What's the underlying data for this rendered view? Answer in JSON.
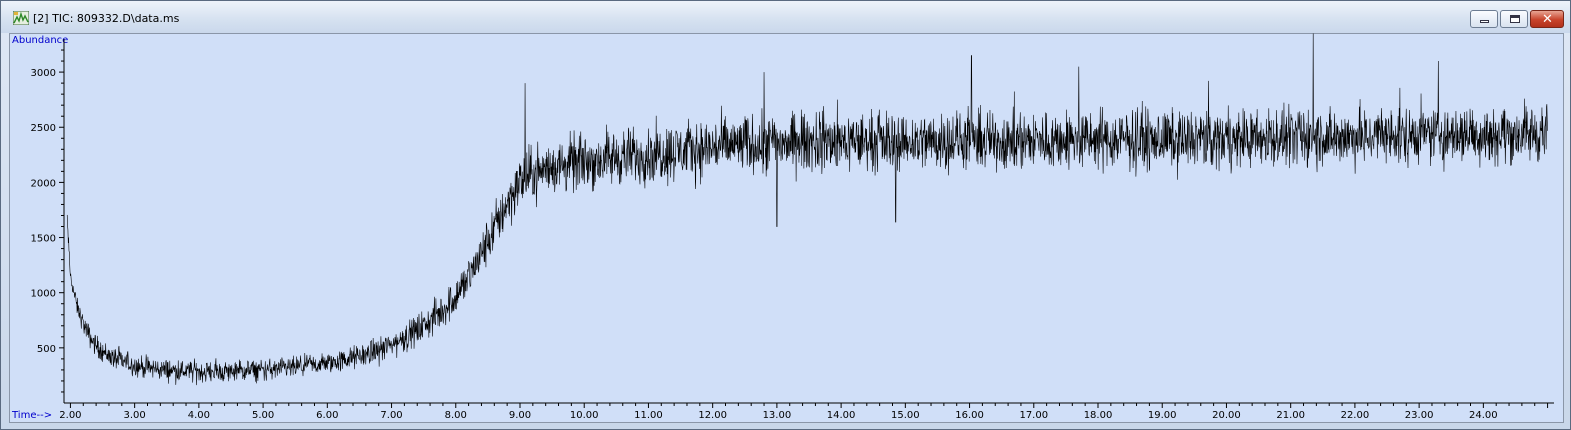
{
  "window": {
    "title": "[2] TIC: 809332.D\\data.ms",
    "icons": [
      "chromatogram-app-icon",
      "minimize-icon",
      "maximize-icon",
      "close-icon"
    ],
    "close_glyph": "✕"
  },
  "chart_data": {
    "type": "line",
    "title": "",
    "xlabel": "Time-->",
    "ylabel": "Abundance",
    "xlim": [
      1.9,
      25.1
    ],
    "ylim": [
      0,
      3300
    ],
    "x_ticks": [
      2,
      3,
      4,
      5,
      6,
      7,
      8,
      9,
      10,
      11,
      12,
      13,
      14,
      15,
      16,
      17,
      18,
      19,
      20,
      21,
      22,
      23,
      24
    ],
    "x_tick_labels": [
      "2.00",
      "3.00",
      "4.00",
      "5.00",
      "6.00",
      "7.00",
      "8.00",
      "9.00",
      "10.00",
      "11.00",
      "12.00",
      "13.00",
      "14.00",
      "15.00",
      "16.00",
      "17.00",
      "18.00",
      "19.00",
      "20.00",
      "21.00",
      "22.00",
      "23.00",
      "24.00"
    ],
    "y_ticks": [
      500,
      1000,
      1500,
      2000,
      2500,
      3000
    ],
    "y_tick_labels": [
      "500",
      "1000",
      "1500",
      "2000",
      "2500",
      "3000"
    ],
    "grid": false,
    "legend": "none",
    "line_color": "#000000",
    "background_color": "#d0dff8",
    "series": [
      {
        "x": [
          1.95,
          2.0,
          2.1,
          2.2,
          2.3,
          2.4,
          2.5,
          2.6,
          2.7,
          2.8,
          2.9,
          3.0,
          3.2,
          3.4,
          3.6,
          3.8,
          4.0,
          4.2,
          4.4,
          4.6,
          4.8,
          5.0,
          5.2,
          5.4,
          5.6,
          5.8,
          6.0,
          6.2,
          6.4,
          6.6,
          6.8,
          7.0,
          7.2,
          7.4,
          7.6,
          7.8,
          8.0,
          8.2,
          8.4,
          8.6,
          8.8,
          9.0,
          9.2,
          9.4,
          9.6,
          9.8,
          10.0,
          10.2,
          10.4,
          10.6,
          10.8,
          11.0,
          11.2,
          11.4,
          11.6,
          11.8,
          12.0,
          12.2,
          12.4,
          12.6,
          12.8,
          13.0,
          13.2,
          13.4,
          13.6,
          13.8,
          14.0,
          14.2,
          14.4,
          14.6,
          14.8,
          15.0,
          15.2,
          15.4,
          15.6,
          15.8,
          16.0,
          16.2,
          16.4,
          16.6,
          16.8,
          17.0,
          17.2,
          17.4,
          17.6,
          17.8,
          18.0,
          18.2,
          18.4,
          18.6,
          18.8,
          19.0,
          19.2,
          19.4,
          19.6,
          19.8,
          20.0,
          20.2,
          20.4,
          20.6,
          20.8,
          21.0,
          21.2,
          21.4,
          21.6,
          21.8,
          22.0,
          22.2,
          22.4,
          22.6,
          22.8,
          23.0,
          23.2,
          23.4,
          23.6,
          23.8,
          24.0,
          24.2,
          24.4,
          24.6,
          24.8,
          25.0
        ],
        "y": [
          1650,
          1150,
          880,
          720,
          600,
          520,
          470,
          430,
          400,
          380,
          360,
          340,
          320,
          305,
          295,
          290,
          285,
          285,
          285,
          290,
          295,
          300,
          305,
          315,
          330,
          345,
          360,
          380,
          410,
          440,
          480,
          530,
          590,
          660,
          740,
          840,
          970,
          1140,
          1350,
          1580,
          1820,
          2000,
          2080,
          2120,
          2150,
          2170,
          2190,
          2200,
          2220,
          2230,
          2240,
          2250,
          2270,
          2280,
          2290,
          2300,
          2320,
          2330,
          2340,
          2350,
          2350,
          2360,
          2360,
          2360,
          2370,
          2370,
          2370,
          2370,
          2370,
          2370,
          2370,
          2370,
          2370,
          2380,
          2380,
          2380,
          2380,
          2380,
          2380,
          2380,
          2380,
          2380,
          2380,
          2380,
          2380,
          2380,
          2380,
          2390,
          2390,
          2390,
          2390,
          2390,
          2390,
          2390,
          2390,
          2390,
          2400,
          2400,
          2400,
          2400,
          2400,
          2400,
          2410,
          2410,
          2410,
          2410,
          2410,
          2410,
          2420,
          2420,
          2420,
          2430,
          2430,
          2430,
          2440,
          2440,
          2440,
          2440,
          2440,
          2440,
          2440,
          2440
        ],
        "noise_amplitude": [
          80,
          80,
          90,
          100,
          110,
          110,
          110,
          110,
          110,
          110,
          110,
          110,
          110,
          110,
          110,
          110,
          110,
          110,
          110,
          110,
          110,
          110,
          110,
          110,
          110,
          110,
          110,
          115,
          120,
          125,
          130,
          140,
          150,
          160,
          170,
          185,
          200,
          215,
          230,
          250,
          270,
          280,
          280,
          280,
          280,
          285,
          290,
          290,
          290,
          290,
          290,
          290,
          295,
          300,
          300,
          300,
          300,
          300,
          300,
          300,
          300,
          300,
          300,
          300,
          300,
          300,
          300,
          300,
          300,
          300,
          300,
          300,
          300,
          300,
          300,
          300,
          300,
          300,
          300,
          300,
          300,
          300,
          300,
          300,
          300,
          300,
          300,
          300,
          300,
          300,
          300,
          300,
          300,
          300,
          300,
          300,
          300,
          300,
          300,
          300,
          300,
          300,
          300,
          300,
          300,
          300,
          300,
          300,
          300,
          300,
          300,
          300,
          300,
          300,
          300,
          300,
          300,
          300,
          300,
          300,
          300,
          300,
          300
        ],
        "spikes": [
          {
            "x": 9.08,
            "y": 2900
          },
          {
            "x": 12.8,
            "y": 3000
          },
          {
            "x": 16.03,
            "y": 3150
          },
          {
            "x": 21.35,
            "y": 3350
          },
          {
            "x": 23.3,
            "y": 3100
          },
          {
            "x": 17.7,
            "y": 3050
          },
          {
            "x": 13.0,
            "y": 1600
          },
          {
            "x": 14.85,
            "y": 1640
          }
        ]
      }
    ]
  }
}
